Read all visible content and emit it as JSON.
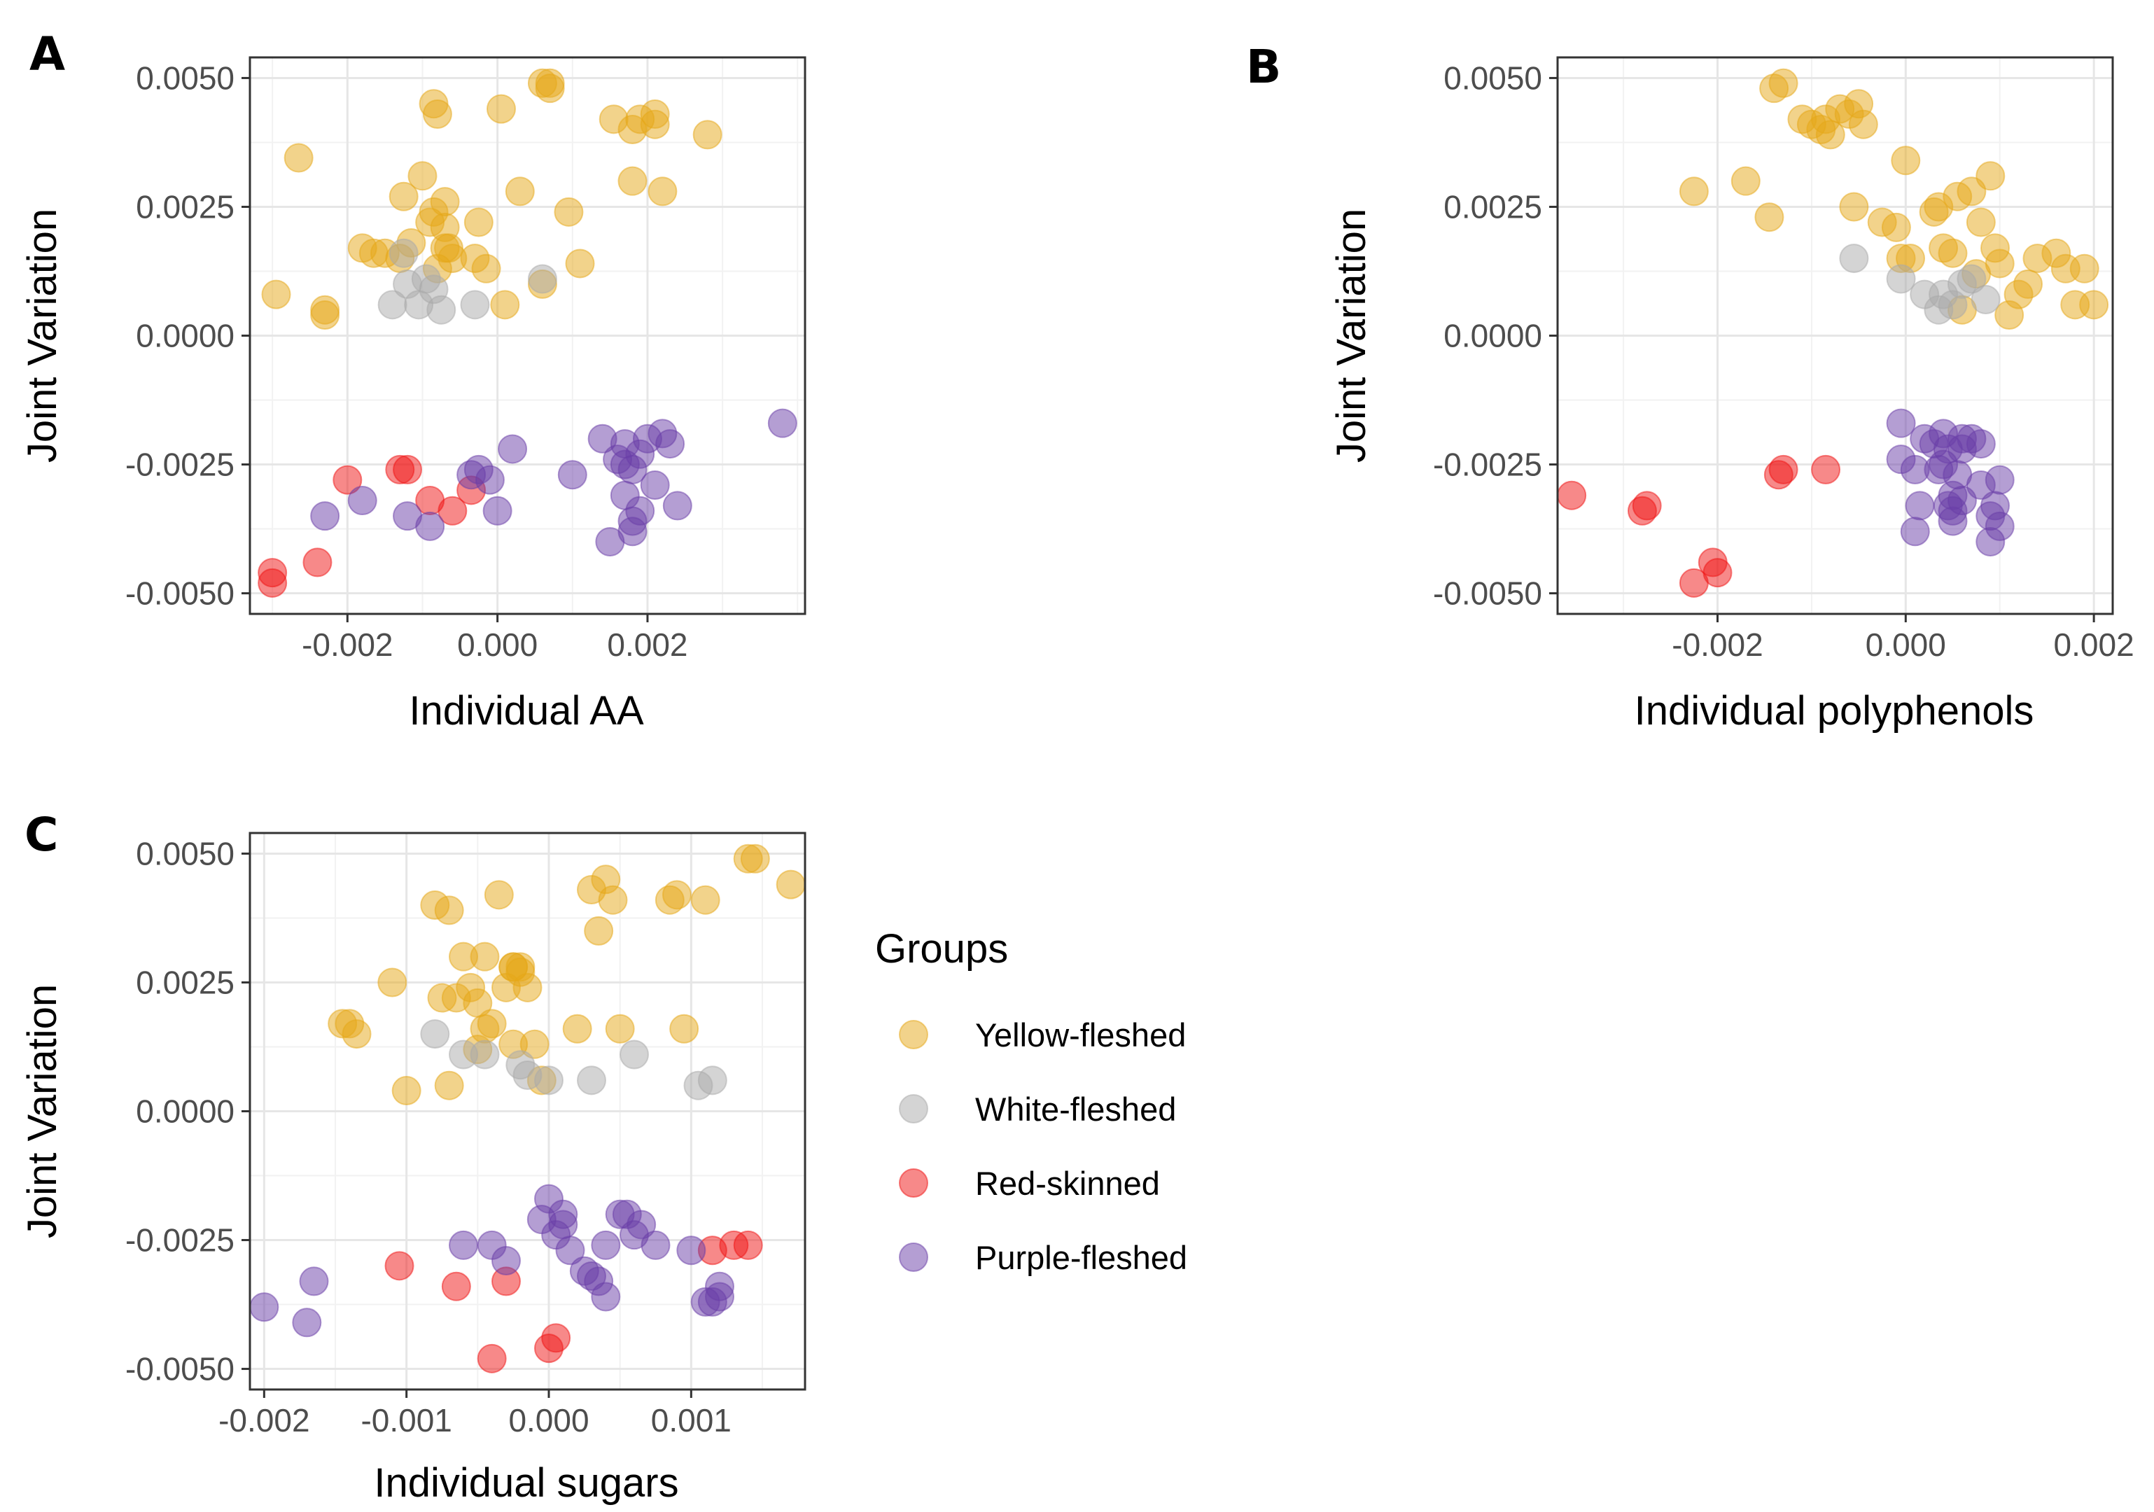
{
  "figure": {
    "legend": {
      "title": "Groups",
      "items": [
        {
          "key": "yellow",
          "label": "Yellow-fleshed"
        },
        {
          "key": "white",
          "label": "White-fleshed"
        },
        {
          "key": "red",
          "label": "Red-skinned"
        },
        {
          "key": "purple",
          "label": "Purple-fleshed"
        }
      ]
    },
    "colors": {
      "yellow": "#E6A817",
      "white": "#A9A9A9",
      "red": "#F01414",
      "purple": "#6A3DA8"
    }
  },
  "chart_data": [
    {
      "panel": "A",
      "type": "scatter",
      "xlabel": "Individual AA",
      "ylabel": "Joint Variation",
      "xlim": [
        -0.0033,
        0.0041
      ],
      "ylim": [
        -0.0054,
        0.0054
      ],
      "xticks": [
        -0.002,
        0.0,
        0.002
      ],
      "xtick_labels": [
        "-0.002",
        "0.000",
        "0.002"
      ],
      "yticks": [
        -0.005,
        -0.0025,
        0.0,
        0.0025,
        0.005
      ],
      "ytick_labels": [
        "-0.0050",
        "-0.0025",
        "0.0000",
        "0.0025",
        "0.0050"
      ],
      "series": [
        {
          "name": "yellow",
          "x": [
            -0.00265,
            -0.00295,
            -0.0023,
            -0.0023,
            -0.00165,
            -0.0018,
            -0.0015,
            -0.0013,
            -0.00115,
            -0.00125,
            -0.001,
            -0.0009,
            -0.0007,
            -0.00085,
            -0.0007,
            -0.00065,
            -0.0006,
            -0.0008,
            -0.0007,
            -0.0003,
            -0.00025,
            -0.00015,
            5e-05,
            0.0001,
            0.0003,
            0.0006,
            0.0006,
            0.00095,
            0.0011,
            0.0007,
            0.0007,
            0.00155,
            0.0018,
            0.0019,
            0.0021,
            0.0021,
            0.0018,
            0.0022,
            0.0028,
            -0.00085,
            -0.0008
          ],
          "y": [
            0.00345,
            0.0008,
            0.0004,
            0.0005,
            0.0016,
            0.0017,
            0.0016,
            0.0015,
            0.0018,
            0.0027,
            0.0031,
            0.0022,
            0.0026,
            0.0024,
            0.0021,
            0.0017,
            0.0015,
            0.0013,
            0.0017,
            0.0015,
            0.0022,
            0.0013,
            0.0044,
            0.0006,
            0.0028,
            0.001,
            0.0049,
            0.0024,
            0.0014,
            0.0049,
            0.0048,
            0.0042,
            0.004,
            0.0042,
            0.0041,
            0.0043,
            0.003,
            0.0028,
            0.0039,
            0.0045,
            0.0043
          ]
        },
        {
          "name": "white",
          "x": [
            -0.0014,
            -0.0012,
            -0.00105,
            -0.00095,
            -0.00085,
            -0.00075,
            -0.0003,
            0.0006,
            -0.00125
          ],
          "y": [
            0.0006,
            0.001,
            0.0006,
            0.0011,
            0.0009,
            0.0005,
            0.0006,
            0.0011,
            0.0016
          ]
        },
        {
          "name": "red",
          "x": [
            -0.003,
            -0.003,
            -0.0024,
            -0.002,
            -0.0013,
            -0.0012,
            -0.0009,
            -0.0006,
            -0.00035
          ],
          "y": [
            -0.0046,
            -0.0048,
            -0.0044,
            -0.0028,
            -0.0026,
            -0.0026,
            -0.0032,
            -0.0034,
            -0.003
          ]
        },
        {
          "name": "purple",
          "x": [
            -0.0023,
            -0.0018,
            -0.0012,
            -0.0009,
            -0.00035,
            -0.00025,
            -0.0001,
            0.0,
            0.0002,
            0.001,
            0.0014,
            0.0015,
            0.0017,
            0.0018,
            0.0018,
            0.0019,
            0.002,
            0.0017,
            0.0016,
            0.0021,
            0.0022,
            0.0023,
            0.0024,
            0.0019,
            0.0017,
            0.0018,
            0.0038
          ],
          "y": [
            -0.0035,
            -0.0032,
            -0.0035,
            -0.0037,
            -0.0027,
            -0.0026,
            -0.0028,
            -0.0034,
            -0.0022,
            -0.0027,
            -0.002,
            -0.004,
            -0.0031,
            -0.0038,
            -0.0036,
            -0.0034,
            -0.002,
            -0.0021,
            -0.0024,
            -0.0029,
            -0.0019,
            -0.0021,
            -0.0033,
            -0.0023,
            -0.0025,
            -0.0026,
            -0.0017
          ]
        }
      ]
    },
    {
      "panel": "B",
      "type": "scatter",
      "xlabel": "Individual polyphenols",
      "ylabel": "Joint Variation",
      "xlim": [
        -0.0037,
        0.0022
      ],
      "ylim": [
        -0.0054,
        0.0054
      ],
      "xticks": [
        -0.002,
        0.0,
        0.002
      ],
      "xtick_labels": [
        "-0.002",
        "0.000",
        "0.002"
      ],
      "yticks": [
        -0.005,
        -0.0025,
        0.0,
        0.0025,
        0.005
      ],
      "ytick_labels": [
        "-0.0050",
        "-0.0025",
        "0.0000",
        "0.0025",
        "0.0050"
      ],
      "series": [
        {
          "name": "yellow",
          "x": [
            -0.00225,
            -0.0017,
            -0.00145,
            -0.0014,
            -0.0013,
            -0.0011,
            -0.001,
            -0.0009,
            -0.00085,
            -0.0008,
            -0.0007,
            -0.0006,
            -0.00055,
            -0.0005,
            -0.00045,
            -0.00025,
            -0.0001,
            -5e-05,
            0.0,
            5e-05,
            0.0003,
            0.00035,
            0.0004,
            0.0005,
            0.00055,
            0.0007,
            0.0008,
            0.0009,
            0.00075,
            0.00095,
            0.001,
            0.0012,
            0.0013,
            0.0014,
            0.0016,
            0.0017,
            0.0018,
            0.0019,
            0.002,
            0.0006,
            0.0011
          ],
          "y": [
            0.0028,
            0.003,
            0.0023,
            0.0048,
            0.0049,
            0.0042,
            0.0041,
            0.004,
            0.0042,
            0.0039,
            0.0044,
            0.0043,
            0.0025,
            0.0045,
            0.0041,
            0.0022,
            0.0021,
            0.0015,
            0.0034,
            0.0015,
            0.0024,
            0.0025,
            0.0017,
            0.0016,
            0.0027,
            0.0028,
            0.0022,
            0.0031,
            0.0012,
            0.0017,
            0.0014,
            0.0008,
            0.001,
            0.0015,
            0.0016,
            0.0013,
            0.0006,
            0.0013,
            0.0006,
            0.0005,
            0.0004
          ]
        },
        {
          "name": "white",
          "x": [
            -0.00055,
            -5e-05,
            0.0002,
            0.00035,
            0.0005,
            0.0006,
            0.0007,
            0.00085,
            0.0004
          ],
          "y": [
            0.0015,
            0.0011,
            0.0008,
            0.0005,
            0.0006,
            0.001,
            0.0011,
            0.0007,
            0.0008
          ]
        },
        {
          "name": "red",
          "x": [
            -0.00355,
            -0.0028,
            -0.00275,
            -0.00225,
            -0.00205,
            -0.002,
            -0.00135,
            -0.0013,
            -0.00085
          ],
          "y": [
            -0.0031,
            -0.0034,
            -0.0033,
            -0.0048,
            -0.0044,
            -0.0046,
            -0.0027,
            -0.0026,
            -0.0026
          ]
        },
        {
          "name": "purple",
          "x": [
            -5e-05,
            -5e-05,
            0.0001,
            0.0001,
            0.00015,
            0.0002,
            0.0003,
            0.00035,
            0.0004,
            0.00045,
            0.00045,
            0.0005,
            0.0005,
            0.0005,
            0.00055,
            0.0006,
            0.0006,
            0.0006,
            0.0008,
            0.0008,
            0.0009,
            0.0009,
            0.00095,
            0.001,
            0.001,
            0.0007,
            0.0004
          ],
          "y": [
            -0.0017,
            -0.0024,
            -0.0026,
            -0.0038,
            -0.0033,
            -0.002,
            -0.0021,
            -0.0026,
            -0.0019,
            -0.0022,
            -0.0033,
            -0.0036,
            -0.0031,
            -0.0034,
            -0.0027,
            -0.002,
            -0.0022,
            -0.0032,
            -0.0021,
            -0.0029,
            -0.0035,
            -0.004,
            -0.0033,
            -0.0028,
            -0.0037,
            -0.002,
            -0.0025
          ]
        }
      ]
    },
    {
      "panel": "C",
      "type": "scatter",
      "xlabel": "Individual sugars",
      "ylabel": "Joint Variation",
      "xlim": [
        -0.0021,
        0.0018
      ],
      "ylim": [
        -0.0054,
        0.0054
      ],
      "xticks": [
        -0.002,
        -0.001,
        0.0,
        0.001
      ],
      "xtick_labels": [
        "-0.002",
        "-0.001",
        "0.000",
        "0.001"
      ],
      "yticks": [
        -0.005,
        -0.0025,
        0.0,
        0.0025,
        0.005
      ],
      "ytick_labels": [
        "-0.0050",
        "-0.0025",
        "0.0000",
        "0.0025",
        "0.0050"
      ],
      "series": [
        {
          "name": "yellow",
          "x": [
            -0.00145,
            -0.0014,
            -0.00135,
            -0.0011,
            -0.001,
            -0.0008,
            -0.00075,
            -0.0007,
            -0.0007,
            -0.00065,
            -0.0006,
            -0.00055,
            -0.0005,
            -0.00045,
            -0.00045,
            -0.0004,
            -0.00035,
            -0.0003,
            -0.00025,
            -0.00025,
            -0.0002,
            -0.00015,
            -0.0001,
            -5e-05,
            0.0002,
            0.0003,
            0.00035,
            0.0004,
            0.00045,
            0.0005,
            0.00085,
            0.0009,
            0.00095,
            0.0011,
            0.0014,
            0.00145,
            0.0017,
            -0.0005,
            -0.00025,
            -0.0002
          ],
          "y": [
            0.0017,
            0.0017,
            0.0015,
            0.0025,
            0.0004,
            0.004,
            0.0022,
            0.0039,
            0.0005,
            0.0022,
            0.003,
            0.0024,
            0.0021,
            0.003,
            0.0016,
            0.0017,
            0.0042,
            0.0024,
            0.0028,
            0.0013,
            0.0028,
            0.0024,
            0.0013,
            0.0006,
            0.0016,
            0.0043,
            0.0035,
            0.0045,
            0.0041,
            0.0016,
            0.0041,
            0.0042,
            0.0016,
            0.0041,
            0.0049,
            0.0049,
            0.0044,
            0.0012,
            0.0028,
            0.0027
          ]
        },
        {
          "name": "white",
          "x": [
            -0.0008,
            -0.0006,
            -0.00045,
            -0.0002,
            -0.00015,
            0.0,
            0.0003,
            0.0006,
            0.00105,
            0.00115
          ],
          "y": [
            0.0015,
            0.0011,
            0.0011,
            0.0009,
            0.0007,
            0.0006,
            0.0006,
            0.0011,
            0.0005,
            0.0006
          ]
        },
        {
          "name": "red",
          "x": [
            -0.00105,
            -0.00065,
            -0.0004,
            -0.0003,
            0.0,
            5e-05,
            0.00115,
            0.0013,
            0.0014
          ],
          "y": [
            -0.003,
            -0.0034,
            -0.0048,
            -0.0033,
            -0.0046,
            -0.0044,
            -0.0027,
            -0.0026,
            -0.0026
          ]
        },
        {
          "name": "purple",
          "x": [
            -0.002,
            -0.0017,
            -0.00165,
            -0.0006,
            -0.0004,
            -0.0003,
            -5e-05,
            0.0,
            5e-05,
            0.0001,
            0.0001,
            0.00015,
            0.00025,
            0.0003,
            0.00035,
            0.0004,
            0.0004,
            0.0005,
            0.00055,
            0.0006,
            0.00065,
            0.00075,
            0.001,
            0.0011,
            0.00115,
            0.0012,
            0.0012
          ],
          "y": [
            -0.0038,
            -0.0041,
            -0.0033,
            -0.0026,
            -0.0026,
            -0.0029,
            -0.0021,
            -0.0017,
            -0.0024,
            -0.0022,
            -0.002,
            -0.0027,
            -0.0031,
            -0.0032,
            -0.0033,
            -0.0036,
            -0.0026,
            -0.002,
            -0.002,
            -0.0024,
            -0.0022,
            -0.0026,
            -0.0027,
            -0.0037,
            -0.0037,
            -0.0036,
            -0.0034
          ]
        }
      ]
    }
  ]
}
